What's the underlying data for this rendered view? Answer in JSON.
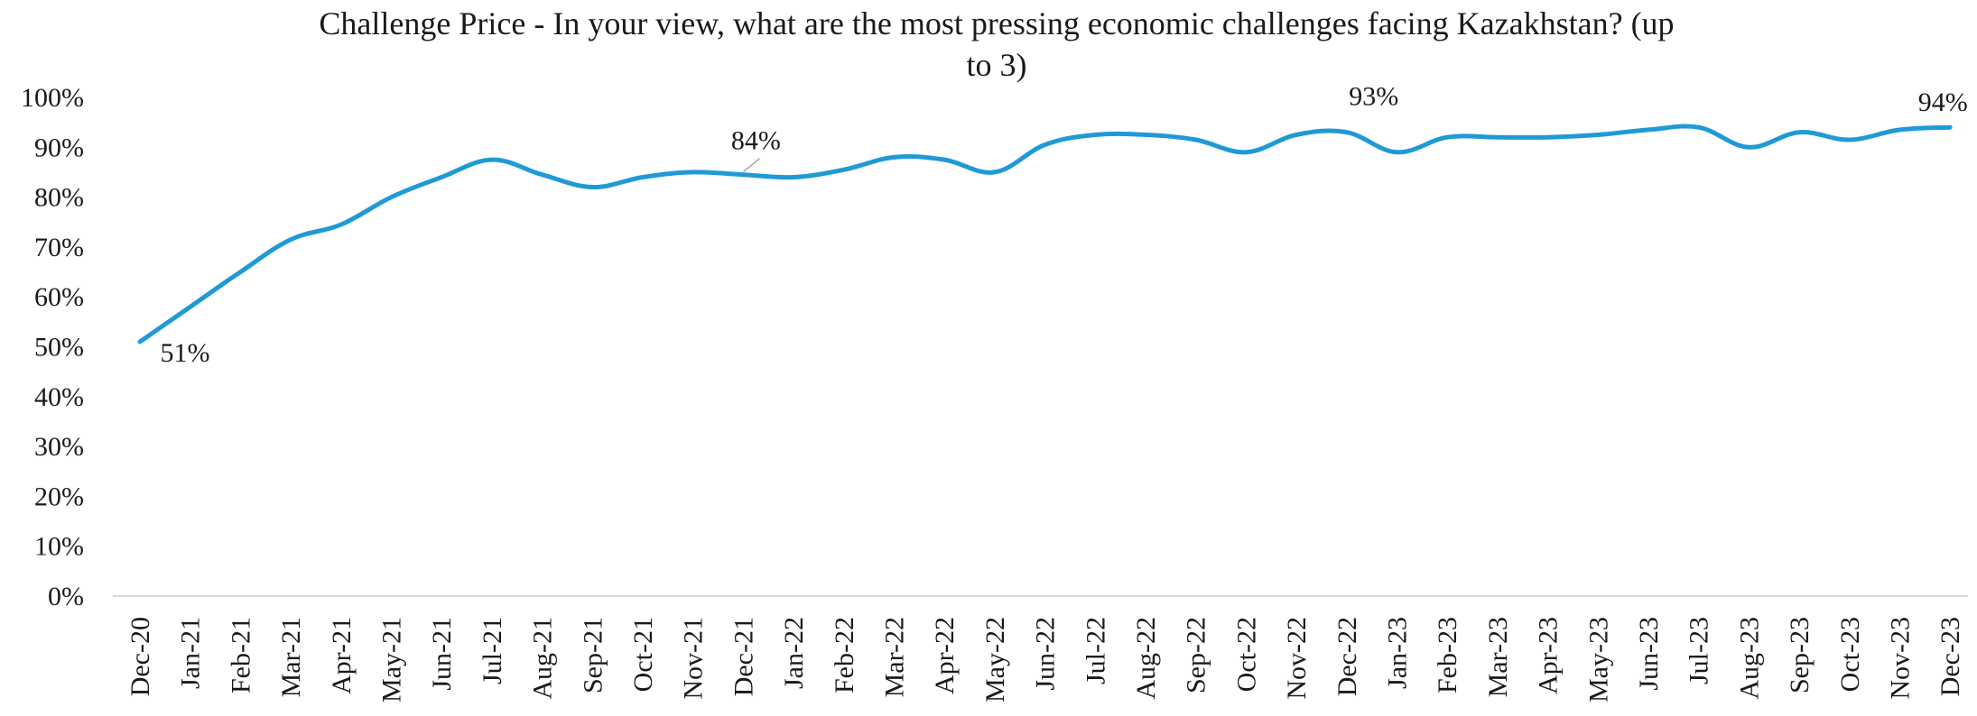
{
  "chart_data": {
    "type": "line",
    "title_line1": "Challenge Price - In your view, what are the most pressing economic challenges facing Kazakhstan? (up",
    "title_line2": "to 3)",
    "categories": [
      "Dec-20",
      "Jan-21",
      "Feb-21",
      "Mar-21",
      "Apr-21",
      "May-21",
      "Jun-21",
      "Jul-21",
      "Aug-21",
      "Sep-21",
      "Oct-21",
      "Nov-21",
      "Dec-21",
      "Jan-22",
      "Feb-22",
      "Mar-22",
      "Apr-22",
      "May-22",
      "Jun-22",
      "Jul-22",
      "Aug-22",
      "Sep-22",
      "Oct-22",
      "Nov-22",
      "Dec-22",
      "Jan-23",
      "Feb-23",
      "Mar-23",
      "Apr-23",
      "May-23",
      "Jun-23",
      "Jul-23",
      "Aug-23",
      "Sep-23",
      "Oct-23",
      "Nov-23",
      "Dec-23"
    ],
    "series": [
      {
        "values": [
          51,
          58,
          65,
          71.5,
          74.5,
          80,
          84,
          87.5,
          84.5,
          82,
          84,
          85,
          84.5,
          84,
          85.5,
          88,
          87.5,
          85,
          90.5,
          92.5,
          92.5,
          91.5,
          89,
          92.5,
          93,
          89,
          92,
          92,
          92,
          92.5,
          93.5,
          94,
          90,
          93,
          91.5,
          93.5,
          94
        ],
        "color": "#1f9ad6"
      }
    ],
    "data_labels": [
      {
        "index": 0,
        "text": "51%"
      },
      {
        "index": 12,
        "text": "84%"
      },
      {
        "index": 24,
        "text": "93%"
      },
      {
        "index": 36,
        "text": "94%"
      }
    ],
    "y_ticks": [
      "0%",
      "10%",
      "20%",
      "30%",
      "40%",
      "50%",
      "60%",
      "70%",
      "80%",
      "90%",
      "100%"
    ],
    "ylim": [
      0,
      100
    ],
    "xlabel": "",
    "ylabel": "",
    "grid": false,
    "axis_color": "#d9d9d9"
  }
}
